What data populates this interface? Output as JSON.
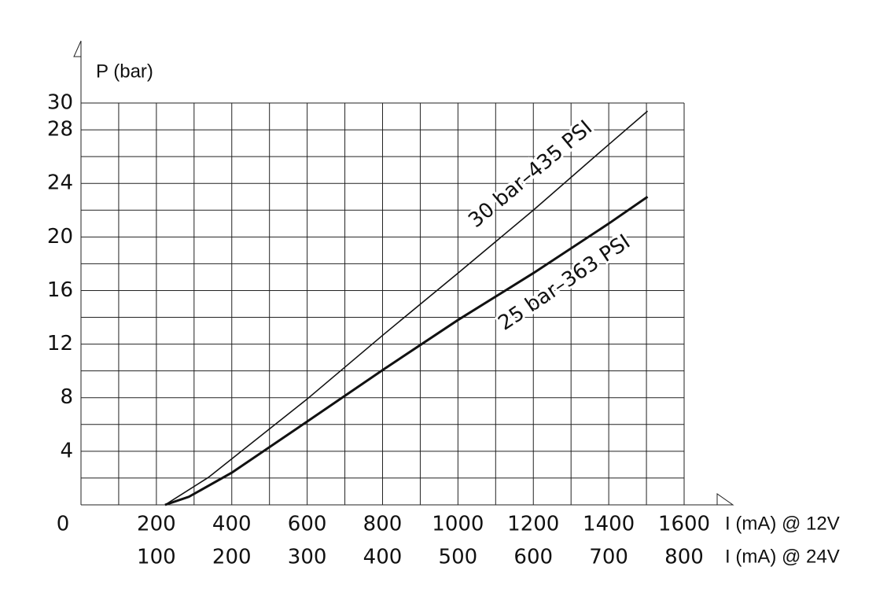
{
  "chart_data": {
    "type": "line",
    "y_label": "P (bar)",
    "x_label": "I (mA) @ 12V",
    "x2_label": "I (mA) @ 24V",
    "xlim": [
      0,
      1600
    ],
    "xticks": [
      0,
      200,
      400,
      600,
      800,
      1000,
      1200,
      1400,
      1600
    ],
    "x2lim": [
      0,
      800
    ],
    "x2ticks": [
      100,
      200,
      300,
      400,
      500,
      600,
      700,
      800
    ],
    "ylim": [
      0,
      30
    ],
    "yticks": [
      4,
      8,
      12,
      16,
      20,
      24,
      28,
      30
    ],
    "xgrid": [
      0,
      100,
      200,
      300,
      400,
      500,
      600,
      700,
      800,
      900,
      1000,
      1100,
      1200,
      1300,
      1400,
      1500,
      1600
    ],
    "ygrid": [
      0,
      2,
      4,
      6,
      8,
      10,
      12,
      14,
      16,
      18,
      20,
      22,
      24,
      26,
      28,
      30
    ],
    "grid": true,
    "series": [
      {
        "name": "30 bar–435 PSI",
        "color": "#111111",
        "width": 1.6,
        "x": [
          223,
          338,
          600,
          802,
          1000,
          1200,
          1400,
          1503
        ],
        "values": [
          0,
          2.05,
          7.9,
          12.7,
          17.3,
          22.0,
          26.9,
          29.4
        ]
      },
      {
        "name": "25 bar–363 PSI",
        "color": "#111111",
        "width": 3,
        "x": [
          223,
          286,
          400,
          599,
          802,
          1000,
          1200,
          1400,
          1503
        ],
        "values": [
          0,
          0.6,
          2.4,
          6.2,
          10.1,
          13.8,
          17.3,
          21.0,
          23.0
        ]
      }
    ]
  }
}
